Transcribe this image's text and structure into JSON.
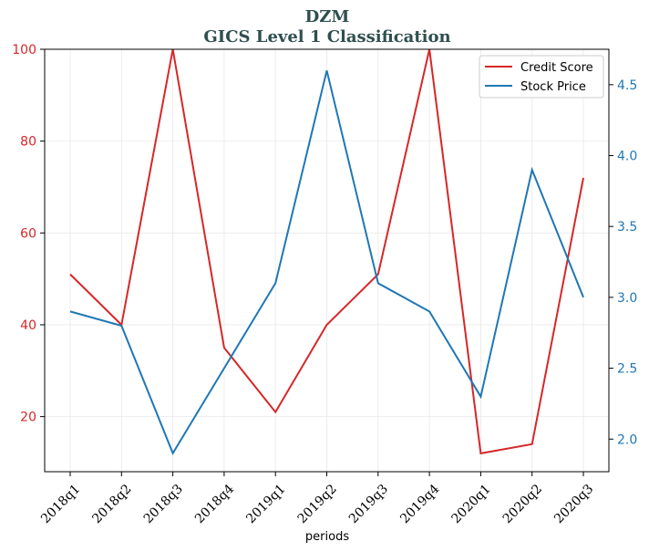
{
  "chart_data": {
    "type": "line",
    "title_line1": "DZM",
    "title_line2": "GICS Level 1 Classification",
    "xlabel": "periods",
    "categories": [
      "2018q1",
      "2018q2",
      "2018q3",
      "2018q4",
      "2019q1",
      "2019q2",
      "2019q3",
      "2019q4",
      "2020q1",
      "2020q2",
      "2020q3"
    ],
    "series": [
      {
        "name": "Credit Score",
        "axis": "left",
        "color": "#d62728",
        "values": [
          51,
          40,
          100,
          35,
          21,
          40,
          51,
          100,
          12,
          14,
          72
        ]
      },
      {
        "name": "Stock Price",
        "axis": "right",
        "color": "#1f77b4",
        "values": [
          2.9,
          2.8,
          1.9,
          2.5,
          3.1,
          4.6,
          3.1,
          2.9,
          2.3,
          3.9,
          3.0
        ]
      }
    ],
    "y_left": {
      "ylim": [
        8,
        100
      ],
      "ticks": [
        20,
        40,
        60,
        80,
        100
      ],
      "tick_labels": [
        "20",
        "40",
        "60",
        "80",
        "100"
      ]
    },
    "y_right": {
      "ylim": [
        1.77,
        4.75
      ],
      "ticks": [
        2.0,
        2.5,
        3.0,
        3.5,
        4.0,
        4.5
      ],
      "tick_labels": [
        "2.0",
        "2.5",
        "3.0",
        "3.5",
        "4.0",
        "4.5"
      ]
    },
    "grid": true,
    "legend_placement": "top-right"
  }
}
